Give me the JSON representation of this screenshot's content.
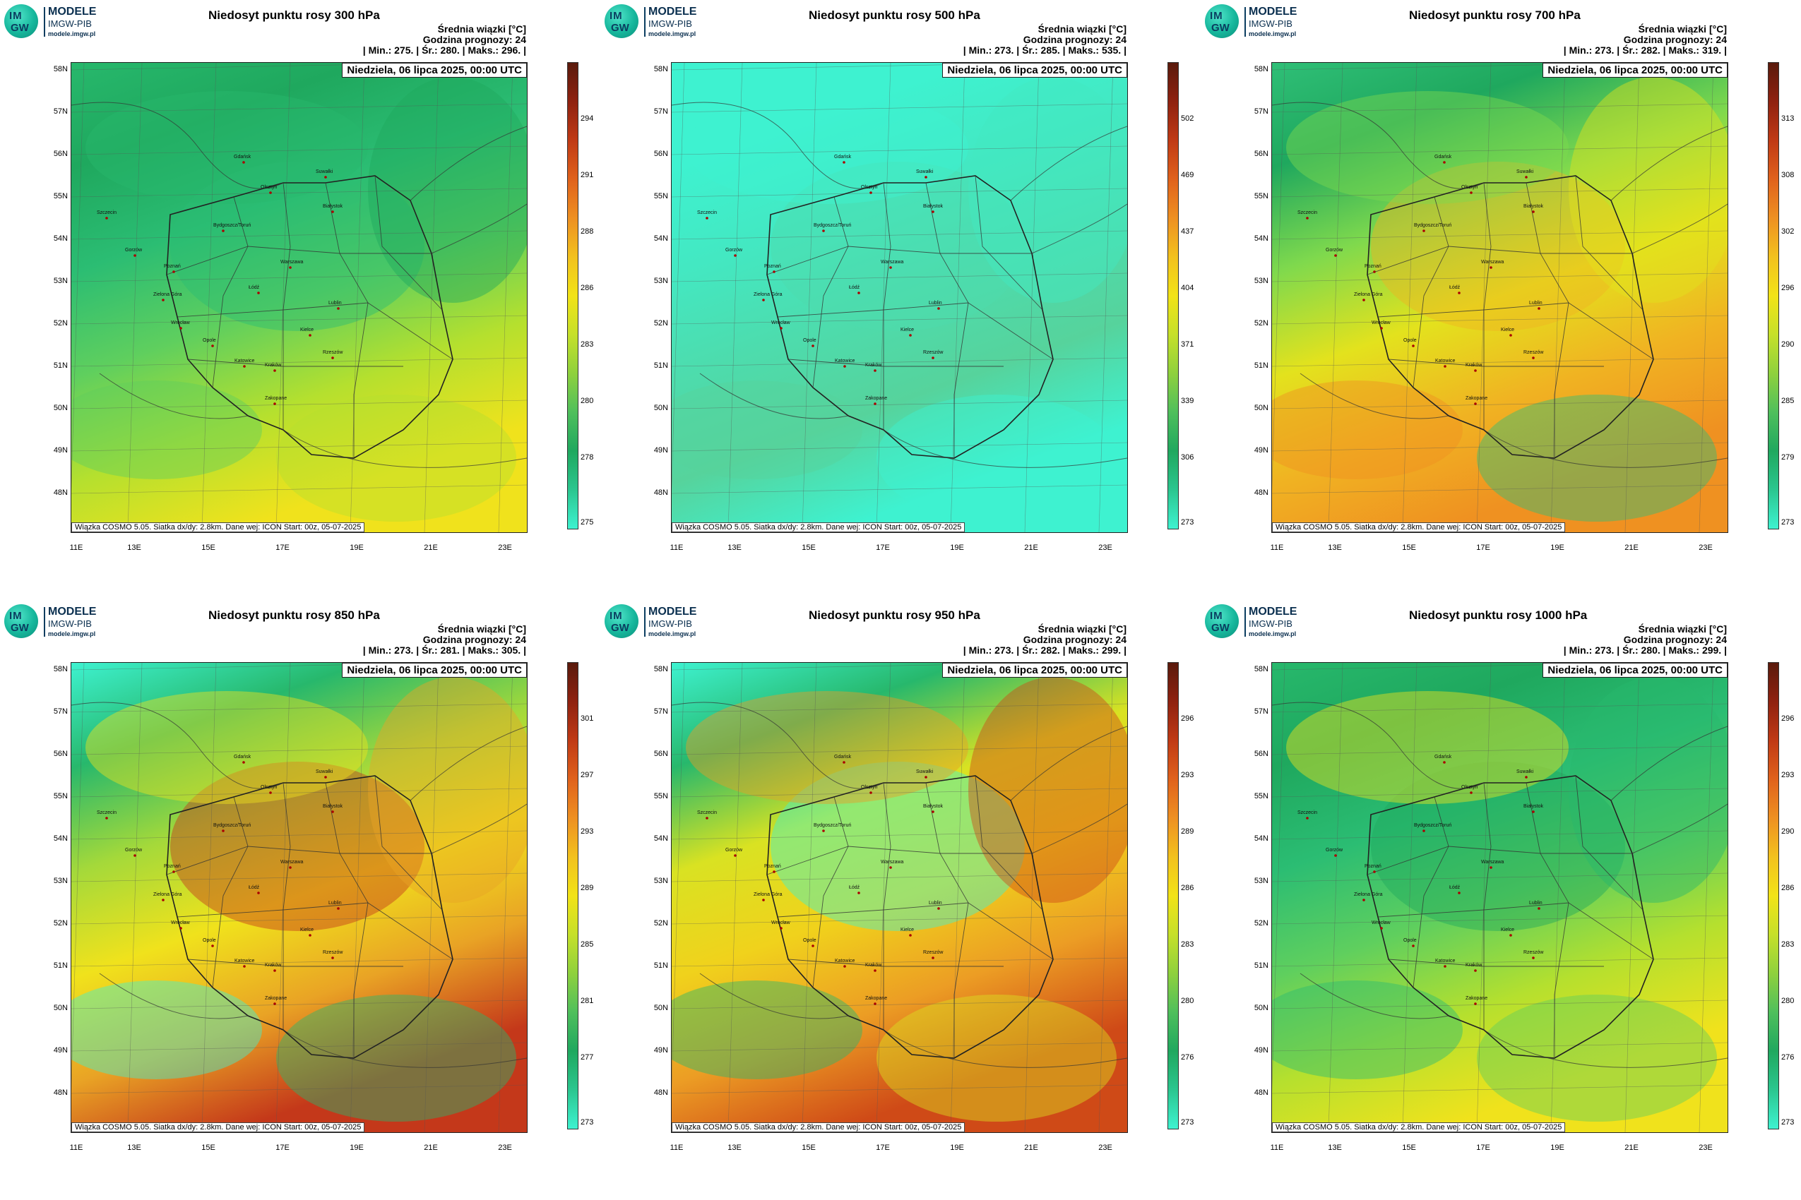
{
  "logo": {
    "badge_top": "IM",
    "badge_bottom": "GW",
    "line1": "MODELE",
    "line2": "IMGW-PIB",
    "line3": "modele.imgw.pl"
  },
  "colors": {
    "low": "#3ef2d0",
    "midgreen": "#16a35c",
    "yellow": "#f2e317",
    "orange": "#e8801d",
    "red": "#a8200c",
    "dark": "#5a1a0c"
  },
  "panels": [
    {
      "title": "Niedosyt punktu rosy 300 hPa",
      "header_right": "Średnia wiązki [°C]",
      "forecast_hour": "Godzina prognozy: 24",
      "stats": {
        "min": "| Min.:    275. | Śr.:    280. | Maks.:    296. |"
      },
      "date": "Niedziela, 06 lipca 2025, 00:00 UTC",
      "footer": "Wiązka  COSMO 5.05. Siatka dx/dy: 2.8km. Dane wej: ICON Start: 00z, 05-07-2025",
      "colorbar_ticks": [
        "294",
        "291",
        "288",
        "286",
        "283",
        "280",
        "278",
        "275"
      ],
      "dominant": "green-yellow"
    },
    {
      "title": "Niedosyt punktu rosy 500 hPa",
      "header_right": "Średnia wiązki [°C]",
      "forecast_hour": "Godzina prognozy: 24",
      "stats": {
        "min": "| Min.:    273. | Śr.:    285. | Maks.:    535. |"
      },
      "date": "Niedziela, 06 lipca 2025, 00:00 UTC",
      "footer": "Wiązka  COSMO 5.05. Siatka dx/dy: 2.8km. Dane wej: ICON Start: 00z, 05-07-2025",
      "colorbar_ticks": [
        "502",
        "469",
        "437",
        "404",
        "371",
        "339",
        "306",
        "273"
      ],
      "dominant": "cyan"
    },
    {
      "title": "Niedosyt punktu rosy 700 hPa",
      "header_right": "Średnia wiązki [°C]",
      "forecast_hour": "Godzina prognozy: 24",
      "stats": {
        "min": "| Min.:    273. | Śr.:    282. | Maks.:    319. |"
      },
      "date": "Niedziela, 06 lipca 2025, 00:00 UTC",
      "footer": "Wiązka  COSMO 5.05. Siatka dx/dy: 2.8km. Dane wej: ICON Start: 00z, 05-07-2025",
      "colorbar_ticks": [
        "313",
        "308",
        "302",
        "296",
        "290",
        "285",
        "279",
        "273"
      ],
      "dominant": "green-orange"
    },
    {
      "title": "Niedosyt punktu rosy 850 hPa",
      "header_right": "Średnia wiązki [°C]",
      "forecast_hour": "Godzina prognozy: 24",
      "stats": {
        "min": "| Min.:    273. | Śr.:    281. | Maks.:    305. |"
      },
      "date": "Niedziela, 06 lipca 2025, 00:00 UTC",
      "footer": "Wiązka  COSMO 5.05. Siatka dx/dy: 2.8km. Dane wej: ICON Start: 00z, 05-07-2025",
      "colorbar_ticks": [
        "301",
        "297",
        "293",
        "289",
        "285",
        "281",
        "277",
        "273"
      ],
      "dominant": "green-yellow-red"
    },
    {
      "title": "Niedosyt punktu rosy 950 hPa",
      "header_right": "Średnia wiązki [°C]",
      "forecast_hour": "Godzina prognozy: 24",
      "stats": {
        "min": "| Min.:    273. | Śr.:    282. | Maks.:    299. |"
      },
      "date": "Niedziela, 06 lipca 2025, 00:00 UTC",
      "footer": "Wiązka  COSMO 5.05. Siatka dx/dy: 2.8km. Dane wej: ICON Start: 00z, 05-07-2025",
      "colorbar_ticks": [
        "296",
        "293",
        "289",
        "286",
        "283",
        "280",
        "276",
        "273"
      ],
      "dominant": "yellow-orange"
    },
    {
      "title": "Niedosyt punktu rosy 1000 hPa",
      "header_right": "Średnia wiązki [°C]",
      "forecast_hour": "Godzina prognozy: 24",
      "stats": {
        "min": "| Min.:    273. | Śr.:    280. | Maks.:    299. |"
      },
      "date": "Niedziela, 06 lipca 2025, 00:00 UTC",
      "footer": "Wiązka  COSMO 5.05. Siatka dx/dy: 2.8km. Dane wej: ICON Start: 00z, 05-07-2025",
      "colorbar_ticks": [
        "296",
        "293",
        "290",
        "286",
        "283",
        "280",
        "276",
        "273"
      ],
      "dominant": "green-yellow"
    }
  ],
  "lat_labels": [
    "58N",
    "57N",
    "56N",
    "55N",
    "54N",
    "53N",
    "52N",
    "51N",
    "50N",
    "49N",
    "48N"
  ],
  "lon_labels": [
    "11E",
    "13E",
    "15E",
    "17E",
    "19E",
    "21E",
    "23E"
  ],
  "cities": [
    "Gdańsk",
    "Olsztyn",
    "Suwałki",
    "Białystok",
    "Szczecin",
    "Bydgoszcz/Toruń",
    "Gorzów",
    "Poznań",
    "Warszawa",
    "Zielona Góra",
    "Łódź",
    "Lublin",
    "Wrocław",
    "Opole",
    "Kielce",
    "Rzeszów",
    "Katowice",
    "Kraków",
    "Zakopane"
  ]
}
